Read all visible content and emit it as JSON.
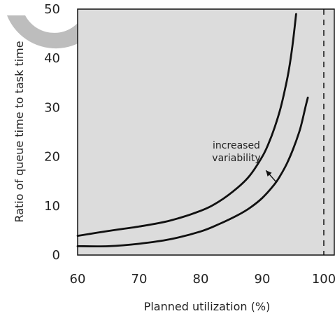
{
  "chart_data": {
    "type": "line",
    "xlabel": "Planned utilization (%)",
    "ylabel": "Ratio of queue time to task time",
    "xlim": [
      60,
      100
    ],
    "ylim": [
      0,
      50
    ],
    "x_ticks": [
      60,
      70,
      80,
      90,
      100
    ],
    "y_ticks": [
      0,
      10,
      20,
      30,
      40,
      50
    ],
    "grid": false,
    "legend": "none",
    "plot_background": "#dcdcdc",
    "line_color": "#111111",
    "reference_line": {
      "x": 100,
      "style": "dashed"
    },
    "annotation": {
      "lines": [
        "increased",
        "variability"
      ],
      "arrow_from": [
        92.3,
        14.8
      ],
      "arrow_to": [
        90.6,
        17.2
      ]
    },
    "series": [
      {
        "x": [
          60,
          65,
          70,
          75,
          80,
          83,
          86,
          88,
          90,
          91,
          92,
          93,
          94,
          94.5,
          95,
          95.5
        ],
        "y": [
          3.9,
          4.9,
          5.8,
          7.0,
          9.0,
          10.9,
          13.7,
          16.2,
          20.0,
          22.6,
          25.9,
          30.0,
          35.5,
          39.0,
          43.5,
          49.0
        ]
      },
      {
        "x": [
          60,
          65,
          70,
          75,
          80,
          83,
          86,
          88,
          90,
          92,
          93,
          94,
          95,
          96,
          96.5,
          97,
          97.4
        ],
        "y": [
          1.8,
          1.8,
          2.3,
          3.2,
          4.8,
          6.3,
          8.1,
          9.6,
          11.6,
          14.4,
          16.3,
          18.6,
          21.5,
          25.0,
          27.3,
          30.0,
          32.0
        ]
      }
    ]
  }
}
